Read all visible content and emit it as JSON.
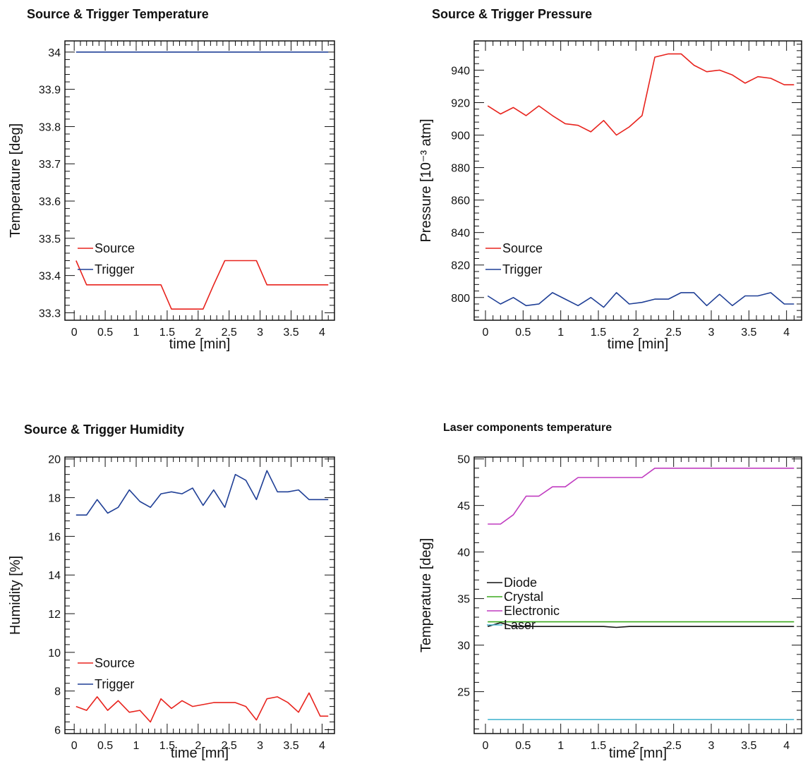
{
  "chart_data": [
    {
      "type": "line",
      "title": "Source & Trigger Temperature",
      "xlabel": "time [min]",
      "ylabel": "Temperature [deg]",
      "xlim": [
        -0.15,
        4.2
      ],
      "ylim": [
        33.28,
        34.03
      ],
      "xticks": [
        0,
        0.5,
        1,
        1.5,
        2,
        2.5,
        3,
        3.5,
        4
      ],
      "xtick_labels": [
        "0",
        "0.5",
        "1",
        "1.5",
        "2",
        "2.5",
        "3",
        "3.5",
        "4"
      ],
      "yticks": [
        33.3,
        33.4,
        33.5,
        33.6,
        33.7,
        33.8,
        33.9,
        34
      ],
      "ytick_labels": [
        "33.3",
        "33.4",
        "33.5",
        "33.6",
        "33.7",
        "33.8",
        "33.9",
        "34"
      ],
      "legend_position": "lower-left",
      "series": [
        {
          "name": "Source",
          "color": "#e8231d",
          "x": [
            0.03,
            0.2,
            0.37,
            0.54,
            0.71,
            0.89,
            1.06,
            1.23,
            1.4,
            1.57,
            1.74,
            1.91,
            2.08,
            2.25,
            2.43,
            2.6,
            2.77,
            2.94,
            3.11,
            3.28,
            3.45,
            3.62,
            3.79,
            3.97,
            4.1
          ],
          "y": [
            33.44,
            33.375,
            33.375,
            33.375,
            33.375,
            33.375,
            33.375,
            33.375,
            33.375,
            33.31,
            33.31,
            33.31,
            33.31,
            33.375,
            33.44,
            33.44,
            33.44,
            33.44,
            33.375,
            33.375,
            33.375,
            33.375,
            33.375,
            33.375,
            33.375
          ]
        },
        {
          "name": "Trigger",
          "color": "#1f3f96",
          "x": [
            0.03,
            0.2,
            0.37,
            0.54,
            0.71,
            0.89,
            1.06,
            1.23,
            1.4,
            1.57,
            1.74,
            1.91,
            2.08,
            2.25,
            2.43,
            2.6,
            2.77,
            2.94,
            3.11,
            3.28,
            3.45,
            3.62,
            3.79,
            3.97,
            4.1
          ],
          "y": [
            34,
            34,
            34,
            34,
            34,
            34,
            34,
            34,
            34,
            34,
            34,
            34,
            34,
            34,
            34,
            34,
            34,
            34,
            34,
            34,
            34,
            34,
            34,
            34,
            34
          ]
        }
      ]
    },
    {
      "type": "line",
      "title": "Source & Trigger Pressure",
      "xlabel": "time [min]",
      "ylabel": "Pressure [10⁻³ atm]",
      "xlim": [
        -0.15,
        4.2
      ],
      "ylim": [
        786,
        958
      ],
      "xticks": [
        0,
        0.5,
        1,
        1.5,
        2,
        2.5,
        3,
        3.5,
        4
      ],
      "xtick_labels": [
        "0",
        "0.5",
        "1",
        "1.5",
        "2",
        "2.5",
        "3",
        "3.5",
        "4"
      ],
      "yticks": [
        800,
        820,
        840,
        860,
        880,
        900,
        920,
        940
      ],
      "ytick_labels": [
        "800",
        "820",
        "840",
        "860",
        "880",
        "900",
        "920",
        "940"
      ],
      "legend_position": "lower-left",
      "series": [
        {
          "name": "Source",
          "color": "#e8231d",
          "x": [
            0.03,
            0.2,
            0.37,
            0.54,
            0.71,
            0.89,
            1.06,
            1.23,
            1.4,
            1.57,
            1.74,
            1.91,
            2.08,
            2.25,
            2.43,
            2.6,
            2.77,
            2.94,
            3.11,
            3.28,
            3.45,
            3.62,
            3.79,
            3.97,
            4.1
          ],
          "y": [
            918,
            913,
            917,
            912,
            918,
            912,
            907,
            906,
            902,
            909,
            900,
            905,
            912,
            948,
            950,
            950,
            943,
            939,
            940,
            937,
            932,
            936,
            935,
            931,
            931
          ]
        },
        {
          "name": "Trigger",
          "color": "#1f3f96",
          "x": [
            0.03,
            0.2,
            0.37,
            0.54,
            0.71,
            0.89,
            1.06,
            1.23,
            1.4,
            1.57,
            1.74,
            1.91,
            2.08,
            2.25,
            2.43,
            2.6,
            2.77,
            2.94,
            3.11,
            3.28,
            3.45,
            3.62,
            3.79,
            3.97,
            4.1
          ],
          "y": [
            801,
            796,
            800,
            795,
            796,
            803,
            799,
            795,
            800,
            794,
            803,
            796,
            797,
            799,
            799,
            803,
            803,
            795,
            802,
            795,
            801,
            801,
            803,
            796,
            796
          ]
        }
      ]
    },
    {
      "type": "line",
      "title": "Source & Trigger Humidity",
      "xlabel": "time [mn]",
      "ylabel": "Humidity [%]",
      "xlim": [
        -0.15,
        4.2
      ],
      "ylim": [
        5.8,
        20.1
      ],
      "xticks": [
        0,
        0.5,
        1,
        1.5,
        2,
        2.5,
        3,
        3.5,
        4
      ],
      "xtick_labels": [
        "0",
        "0.5",
        "1",
        "1.5",
        "2",
        "2.5",
        "3",
        "3.5",
        "4"
      ],
      "yticks": [
        6,
        8,
        10,
        12,
        14,
        16,
        18,
        20
      ],
      "ytick_labels": [
        "6",
        "8",
        "10",
        "12",
        "14",
        "16",
        "18",
        "20"
      ],
      "legend_position": "lower-left",
      "series": [
        {
          "name": "Source",
          "color": "#e8231d",
          "x": [
            0.03,
            0.2,
            0.37,
            0.54,
            0.71,
            0.89,
            1.06,
            1.23,
            1.4,
            1.57,
            1.74,
            1.91,
            2.08,
            2.25,
            2.43,
            2.6,
            2.77,
            2.94,
            3.11,
            3.28,
            3.45,
            3.62,
            3.79,
            3.97,
            4.1
          ],
          "y": [
            7.2,
            7.0,
            7.7,
            7.0,
            7.5,
            6.9,
            7.0,
            6.4,
            7.6,
            7.1,
            7.5,
            7.2,
            7.3,
            7.4,
            7.4,
            7.4,
            7.2,
            6.5,
            7.6,
            7.7,
            7.4,
            6.9,
            7.9,
            6.7,
            6.7
          ]
        },
        {
          "name": "Trigger",
          "color": "#1f3f96",
          "x": [
            0.03,
            0.2,
            0.37,
            0.54,
            0.71,
            0.89,
            1.06,
            1.23,
            1.4,
            1.57,
            1.74,
            1.91,
            2.08,
            2.25,
            2.43,
            2.6,
            2.77,
            2.94,
            3.11,
            3.28,
            3.45,
            3.62,
            3.79,
            3.97,
            4.1
          ],
          "y": [
            17.1,
            17.1,
            17.9,
            17.2,
            17.5,
            18.4,
            17.8,
            17.5,
            18.2,
            18.3,
            18.2,
            18.5,
            17.6,
            18.4,
            17.5,
            19.2,
            18.9,
            17.9,
            19.4,
            18.3,
            18.3,
            18.4,
            17.9,
            17.9,
            17.9
          ]
        }
      ]
    },
    {
      "type": "line",
      "title": "Laser components temperature",
      "xlabel": "time [mn]",
      "ylabel": "Temperature [deg]",
      "xlim": [
        -0.15,
        4.2
      ],
      "ylim": [
        20.5,
        50.2
      ],
      "xticks": [
        0,
        0.5,
        1,
        1.5,
        2,
        2.5,
        3,
        3.5,
        4
      ],
      "xtick_labels": [
        "0",
        "0.5",
        "1",
        "1.5",
        "2",
        "2.5",
        "3",
        "3.5",
        "4"
      ],
      "yticks": [
        25,
        30,
        35,
        40,
        45,
        50
      ],
      "ytick_labels": [
        "25",
        "30",
        "35",
        "40",
        "45",
        "50"
      ],
      "legend_position": "lower-left",
      "series": [
        {
          "name": "Diode",
          "color": "#111111",
          "x": [
            0.03,
            0.2,
            0.37,
            0.54,
            0.71,
            0.89,
            1.06,
            1.23,
            1.4,
            1.57,
            1.74,
            1.91,
            2.08,
            2.25,
            2.43,
            2.6,
            2.77,
            2.94,
            3.11,
            3.28,
            3.45,
            3.62,
            3.79,
            3.97,
            4.1
          ],
          "y": [
            32.0,
            32.4,
            32.0,
            32.0,
            32.0,
            32.0,
            32.0,
            32.0,
            32.0,
            32.0,
            31.9,
            32.0,
            32.0,
            32.0,
            32.0,
            32.0,
            32.0,
            32.0,
            32.0,
            32.0,
            32.0,
            32.0,
            32.0,
            32.0,
            32.0
          ]
        },
        {
          "name": "Crystal",
          "color": "#3caa1e",
          "x": [
            0.03,
            0.2,
            0.37,
            0.54,
            0.71,
            0.89,
            1.06,
            1.23,
            1.4,
            1.57,
            1.74,
            1.91,
            2.08,
            2.25,
            2.43,
            2.6,
            2.77,
            2.94,
            3.11,
            3.28,
            3.45,
            3.62,
            3.79,
            3.97,
            4.1
          ],
          "y": [
            32.5,
            32.5,
            32.5,
            32.5,
            32.5,
            32.5,
            32.5,
            32.5,
            32.5,
            32.5,
            32.5,
            32.5,
            32.5,
            32.5,
            32.5,
            32.5,
            32.5,
            32.5,
            32.5,
            32.5,
            32.5,
            32.5,
            32.5,
            32.5,
            32.5
          ]
        },
        {
          "name": "Electronic",
          "color": "#c03cc0",
          "x": [
            0.03,
            0.2,
            0.37,
            0.54,
            0.71,
            0.89,
            1.06,
            1.23,
            1.4,
            1.57,
            1.74,
            1.91,
            2.08,
            2.25,
            2.43,
            2.6,
            2.77,
            2.94,
            3.11,
            3.28,
            3.45,
            3.62,
            3.79,
            3.97,
            4.1
          ],
          "y": [
            43,
            43,
            44,
            46,
            46,
            47,
            47,
            48,
            48,
            48,
            48,
            48,
            48,
            49,
            49,
            49,
            49,
            49,
            49,
            49,
            49,
            49,
            49,
            49,
            49
          ]
        },
        {
          "name": "Laser",
          "color": "#4bb8d2",
          "x": [
            0.03,
            0.2,
            0.37,
            0.54,
            0.71,
            0.89,
            1.06,
            1.23,
            1.4,
            1.57,
            1.74,
            1.91,
            2.08,
            2.25,
            2.43,
            2.6,
            2.77,
            2.94,
            3.11,
            3.28,
            3.45,
            3.62,
            3.79,
            3.97,
            4.1
          ],
          "y": [
            22,
            22,
            22,
            22,
            22,
            22,
            22,
            22,
            22,
            22,
            22,
            22,
            22,
            22,
            22,
            22,
            22,
            22,
            22,
            22,
            22,
            22,
            22,
            22,
            22
          ]
        }
      ]
    }
  ]
}
